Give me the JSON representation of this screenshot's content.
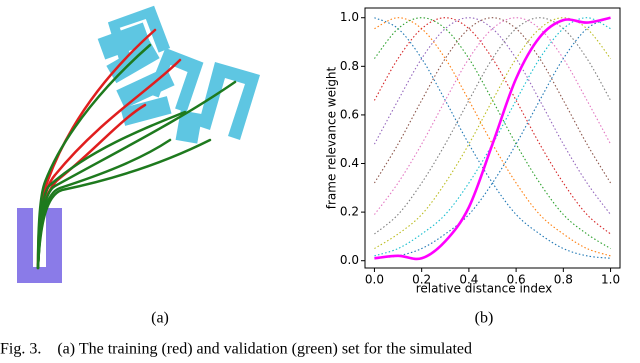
{
  "panel_labels": [
    "(a)",
    "(b)"
  ],
  "caption": "Fig. 3.    (a) The training (red) and validation (green) set for the simulated",
  "chart_data": {
    "type": "line",
    "xlabel": "relative distance index",
    "ylabel": "frame relevance weight",
    "x": [
      0,
      0.1,
      0.2,
      0.3,
      0.4,
      0.5,
      0.6,
      0.7,
      0.8,
      0.9,
      1.0
    ],
    "xlim": [
      -0.04,
      1.04
    ],
    "ylim": [
      -0.03,
      1.04
    ],
    "xticks": [
      {
        "value": 0,
        "label": "0.0"
      },
      {
        "value": 0.2,
        "label": "0.2"
      },
      {
        "value": 0.4,
        "label": "0.4"
      },
      {
        "value": 0.6,
        "label": "0.6"
      },
      {
        "value": 0.8,
        "label": "0.8"
      },
      {
        "value": 1.0,
        "label": "1.0"
      }
    ],
    "yticks": [
      {
        "value": 0,
        "label": "0.0"
      },
      {
        "value": 0.2,
        "label": "0.2"
      },
      {
        "value": 0.4,
        "label": "0.4"
      },
      {
        "value": 0.6,
        "label": "0.6"
      },
      {
        "value": 0.8,
        "label": "0.8"
      },
      {
        "value": 1.0,
        "label": "1.0"
      }
    ],
    "grid": false,
    "series": [
      {
        "color": "#1f77b4",
        "linestyle": "dotted",
        "values": [
          1,
          0.955,
          0.832,
          0.66,
          0.48,
          0.32,
          0.19,
          0.11,
          0.05,
          0.02,
          0.01
        ]
      },
      {
        "color": "#ff7f0e",
        "linestyle": "dotted",
        "values": [
          0.955,
          1,
          0.955,
          0.832,
          0.66,
          0.48,
          0.32,
          0.19,
          0.11,
          0.05,
          0.02
        ]
      },
      {
        "color": "#2ca02c",
        "linestyle": "dotted",
        "values": [
          0.832,
          0.955,
          1,
          0.955,
          0.832,
          0.66,
          0.48,
          0.32,
          0.19,
          0.11,
          0.05
        ]
      },
      {
        "color": "#d62728",
        "linestyle": "dotted",
        "values": [
          0.66,
          0.832,
          0.955,
          1,
          0.955,
          0.832,
          0.66,
          0.48,
          0.32,
          0.19,
          0.11
        ]
      },
      {
        "color": "#9467bd",
        "linestyle": "dotted",
        "values": [
          0.48,
          0.66,
          0.832,
          0.955,
          1,
          0.955,
          0.832,
          0.66,
          0.48,
          0.32,
          0.19
        ]
      },
      {
        "color": "#8c564b",
        "linestyle": "dotted",
        "values": [
          0.32,
          0.48,
          0.66,
          0.832,
          0.955,
          1,
          0.955,
          0.832,
          0.66,
          0.48,
          0.32
        ]
      },
      {
        "color": "#e377c2",
        "linestyle": "dotted",
        "values": [
          0.19,
          0.32,
          0.48,
          0.66,
          0.832,
          0.955,
          1,
          0.955,
          0.832,
          0.66,
          0.48
        ]
      },
      {
        "color": "#7f7f7f",
        "linestyle": "dotted",
        "values": [
          0.11,
          0.19,
          0.32,
          0.48,
          0.66,
          0.832,
          0.955,
          1,
          0.955,
          0.832,
          0.66
        ]
      },
      {
        "color": "#bcbd22",
        "linestyle": "dotted",
        "values": [
          0.05,
          0.11,
          0.19,
          0.32,
          0.48,
          0.66,
          0.832,
          0.955,
          1,
          0.955,
          0.832
        ]
      },
      {
        "color": "#17becf",
        "linestyle": "dotted",
        "values": [
          0.02,
          0.05,
          0.11,
          0.19,
          0.32,
          0.48,
          0.66,
          0.832,
          0.955,
          1,
          0.955
        ]
      },
      {
        "color": "#1f77b4",
        "linestyle": "dotted",
        "values": [
          0.01,
          0.02,
          0.05,
          0.11,
          0.19,
          0.32,
          0.48,
          0.66,
          0.832,
          0.955,
          1
        ]
      },
      {
        "color": "#ff00ff",
        "linestyle": "solid",
        "values": [
          0.01,
          0.02,
          0.01,
          0.08,
          0.22,
          0.48,
          0.75,
          0.92,
          0.99,
          0.98,
          1.0
        ]
      }
    ]
  }
}
